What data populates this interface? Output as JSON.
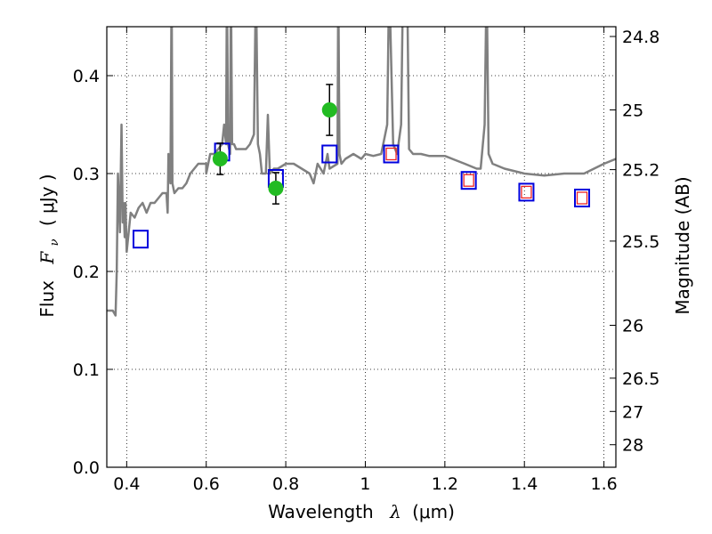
{
  "chart_data": {
    "type": "scatter",
    "xlabel": {
      "text": "Wavelength",
      "symbol": "λ",
      "unit": "(μm)"
    },
    "ylabel": {
      "text": "Flux",
      "symbol": "F",
      "subscript": "ν",
      "unit": "( μJy )"
    },
    "y2label": "Magnitude (AB)",
    "xlim": [
      0.35,
      1.63
    ],
    "ylim": [
      0.0,
      0.45
    ],
    "grid": true,
    "x_ticks": [
      0.4,
      0.6,
      0.8,
      1.0,
      1.2,
      1.4,
      1.6
    ],
    "x_tick_labels": [
      "0.4",
      "0.6",
      "0.8",
      "1",
      "1.2",
      "1.4",
      "1.6"
    ],
    "y_ticks": [
      0.0,
      0.1,
      0.2,
      0.3,
      0.4
    ],
    "y_tick_labels": [
      "0.0",
      "0.1",
      "0.2",
      "0.3",
      "0.4"
    ],
    "y2_ticks": [
      {
        "label": "24.8",
        "flux": 0.44
      },
      {
        "label": "25",
        "flux": 0.365
      },
      {
        "label": "25.2",
        "flux": 0.304
      },
      {
        "label": "25.5",
        "flux": 0.231
      },
      {
        "label": "26",
        "flux": 0.145
      },
      {
        "label": "26.5",
        "flux": 0.091
      },
      {
        "label": "27",
        "flux": 0.057
      },
      {
        "label": "28",
        "flux": 0.023
      }
    ],
    "colors": {
      "template": "#808080",
      "observed": "#22bb22",
      "model_outer": "#0000dd",
      "model_inner": "#ee2222",
      "error_bar": "#000000"
    },
    "series": [
      {
        "kind": "template_spectrum",
        "x": [
          0.35,
          0.365,
          0.372,
          0.375,
          0.378,
          0.383,
          0.387,
          0.39,
          0.392,
          0.395,
          0.397,
          0.4,
          0.405,
          0.41,
          0.42,
          0.43,
          0.44,
          0.45,
          0.46,
          0.47,
          0.48,
          0.49,
          0.5,
          0.503,
          0.505,
          0.51,
          0.513,
          0.515,
          0.52,
          0.53,
          0.54,
          0.55,
          0.56,
          0.58,
          0.6,
          0.6,
          0.61,
          0.62,
          0.63,
          0.64,
          0.645,
          0.65,
          0.652,
          0.655,
          0.66,
          0.662,
          0.665,
          0.67,
          0.675,
          0.68,
          0.7,
          0.71,
          0.72,
          0.725,
          0.73,
          0.735,
          0.74,
          0.75,
          0.755,
          0.76,
          0.77,
          0.78,
          0.8,
          0.82,
          0.84,
          0.86,
          0.87,
          0.88,
          0.895,
          0.905,
          0.91,
          0.93,
          0.932,
          0.935,
          0.94,
          0.95,
          0.97,
          0.99,
          1.0,
          1.02,
          1.04,
          1.055,
          1.06,
          1.07,
          1.08,
          1.09,
          1.095,
          1.1,
          1.105,
          1.11,
          1.12,
          1.14,
          1.16,
          1.2,
          1.25,
          1.28,
          1.29,
          1.3,
          1.305,
          1.31,
          1.32,
          1.35,
          1.4,
          1.45,
          1.5,
          1.55,
          1.6,
          1.63
        ],
        "y": [
          0.16,
          0.16,
          0.155,
          0.2,
          0.3,
          0.24,
          0.35,
          0.25,
          0.27,
          0.235,
          0.27,
          0.22,
          0.24,
          0.26,
          0.255,
          0.265,
          0.27,
          0.26,
          0.27,
          0.27,
          0.275,
          0.28,
          0.28,
          0.26,
          0.32,
          0.29,
          0.5,
          0.29,
          0.28,
          0.285,
          0.285,
          0.29,
          0.3,
          0.31,
          0.31,
          0.3,
          0.32,
          0.32,
          0.325,
          0.33,
          0.35,
          0.33,
          0.5,
          0.33,
          0.32,
          0.5,
          0.33,
          0.33,
          0.325,
          0.325,
          0.325,
          0.33,
          0.34,
          0.5,
          0.33,
          0.32,
          0.3,
          0.3,
          0.36,
          0.3,
          0.305,
          0.305,
          0.31,
          0.31,
          0.305,
          0.3,
          0.29,
          0.31,
          0.3,
          0.32,
          0.305,
          0.31,
          0.5,
          0.32,
          0.31,
          0.315,
          0.32,
          0.315,
          0.32,
          0.318,
          0.32,
          0.35,
          0.5,
          0.33,
          0.32,
          0.35,
          0.5,
          0.5,
          0.5,
          0.325,
          0.32,
          0.32,
          0.318,
          0.318,
          0.31,
          0.305,
          0.305,
          0.35,
          0.5,
          0.32,
          0.31,
          0.305,
          0.3,
          0.298,
          0.3,
          0.3,
          0.31,
          0.315
        ]
      },
      {
        "kind": "observed_photometry",
        "x": [
          0.635,
          0.775,
          0.91
        ],
        "y": [
          0.315,
          0.285,
          0.365
        ],
        "err": [
          0.016,
          0.016,
          0.026
        ]
      },
      {
        "kind": "model_photometry",
        "x": [
          0.435,
          0.64,
          0.775,
          0.91,
          1.065,
          1.26,
          1.405,
          1.545
        ],
        "y": [
          0.233,
          0.322,
          0.295,
          0.32,
          0.32,
          0.293,
          0.281,
          0.275
        ],
        "inner_marker": [
          false,
          false,
          false,
          false,
          true,
          true,
          true,
          true
        ]
      }
    ]
  }
}
